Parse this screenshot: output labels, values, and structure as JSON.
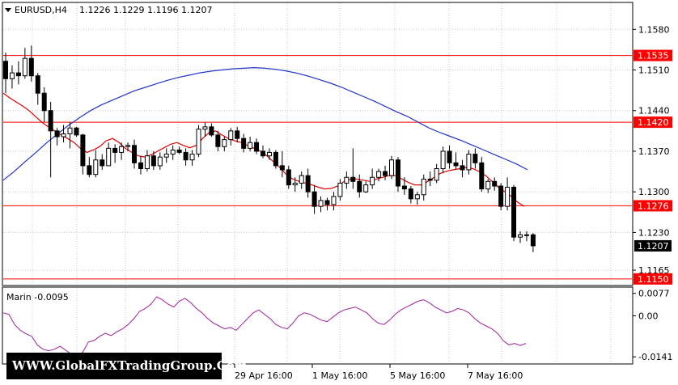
{
  "header": {
    "symbol_label": "EURUSD,H4",
    "ohlc": "1.1226 1.1229 1.1196 1.1207"
  },
  "watermark": "WWW.GlobalFXTradingGroup.Com",
  "colors": {
    "levels": "#ff0000",
    "ma_fast": "#e00000",
    "ma_slow": "#2035c8",
    "oscillator": "#a020a0",
    "grid": "#c8c8c8",
    "current_price_bg": "#000000"
  },
  "price_axis": {
    "ticks": [
      "1.1580",
      "1.1510",
      "1.1440",
      "1.1370",
      "1.1300",
      "1.1230",
      "1.1165"
    ]
  },
  "levels": [
    "1.1535",
    "1.1420",
    "1.1276",
    "1.1150"
  ],
  "current_price": "1.1207",
  "time_axis": {
    "labels": [
      "29 Apr 16:00",
      "1 May 16:00",
      "5 May 16:00",
      "7 May 16:00"
    ]
  },
  "indicator": {
    "label": "Marin -0.0095",
    "ticks": [
      "0.0077",
      "0.00",
      "-0.0141"
    ]
  },
  "chart_data": {
    "type": "candlestick",
    "timeframe": "H4",
    "y_range": [
      1.114,
      1.1625
    ],
    "horizontal_levels": [
      1.1535,
      1.142,
      1.1276,
      1.115
    ],
    "last_price": 1.1207,
    "candles": [
      [
        1.1525,
        1.154,
        1.147,
        1.1495
      ],
      [
        1.1495,
        1.1518,
        1.1478,
        1.1505
      ],
      [
        1.1505,
        1.1525,
        1.1485,
        1.15
      ],
      [
        1.15,
        1.1548,
        1.1495,
        1.153
      ],
      [
        1.153,
        1.1552,
        1.149,
        1.15
      ],
      [
        1.15,
        1.1505,
        1.145,
        1.147
      ],
      [
        1.147,
        1.148,
        1.142,
        1.144
      ],
      [
        1.144,
        1.1455,
        1.1325,
        1.1405
      ],
      [
        1.1405,
        1.141,
        1.138,
        1.1395
      ],
      [
        1.1395,
        1.1415,
        1.1385,
        1.14
      ],
      [
        1.14,
        1.142,
        1.1375,
        1.141
      ],
      [
        1.141,
        1.1412,
        1.1395,
        1.1398
      ],
      [
        1.1398,
        1.14,
        1.133,
        1.1345
      ],
      [
        1.1345,
        1.136,
        1.1325,
        1.133
      ],
      [
        1.133,
        1.1372,
        1.1325,
        1.1355
      ],
      [
        1.1355,
        1.1365,
        1.1338,
        1.1345
      ],
      [
        1.1345,
        1.1385,
        1.1345,
        1.1375
      ],
      [
        1.1375,
        1.1382,
        1.135,
        1.1368
      ],
      [
        1.1368,
        1.1385,
        1.1355,
        1.1378
      ],
      [
        1.1378,
        1.1385,
        1.137,
        1.138
      ],
      [
        1.138,
        1.139,
        1.134,
        1.135
      ],
      [
        1.135,
        1.1362,
        1.133,
        1.134
      ],
      [
        1.134,
        1.1372,
        1.1335,
        1.1362
      ],
      [
        1.1362,
        1.137,
        1.1338,
        1.1345
      ],
      [
        1.1345,
        1.1368,
        1.1338,
        1.136
      ],
      [
        1.136,
        1.1375,
        1.135,
        1.1365
      ],
      [
        1.1365,
        1.138,
        1.1355,
        1.1372
      ],
      [
        1.1372,
        1.1378,
        1.1365,
        1.1368
      ],
      [
        1.1368,
        1.1375,
        1.1345,
        1.1355
      ],
      [
        1.1355,
        1.1372,
        1.1345,
        1.1365
      ],
      [
        1.1365,
        1.1415,
        1.136,
        1.1408
      ],
      [
        1.1408,
        1.142,
        1.1395,
        1.1412
      ],
      [
        1.1412,
        1.1418,
        1.1395,
        1.1398
      ],
      [
        1.1398,
        1.1405,
        1.137,
        1.1378
      ],
      [
        1.1378,
        1.1395,
        1.137,
        1.139
      ],
      [
        1.139,
        1.141,
        1.138,
        1.1405
      ],
      [
        1.1405,
        1.1412,
        1.1385,
        1.1392
      ],
      [
        1.1392,
        1.14,
        1.1368,
        1.1375
      ],
      [
        1.1375,
        1.1395,
        1.137,
        1.1385
      ],
      [
        1.1385,
        1.1392,
        1.1365,
        1.137
      ],
      [
        1.137,
        1.138,
        1.1358,
        1.1362
      ],
      [
        1.1362,
        1.1375,
        1.1355,
        1.1368
      ],
      [
        1.1368,
        1.1372,
        1.134,
        1.1345
      ],
      [
        1.1345,
        1.137,
        1.1325,
        1.1338
      ],
      [
        1.1338,
        1.1345,
        1.1305,
        1.1312
      ],
      [
        1.1312,
        1.1325,
        1.13,
        1.1315
      ],
      [
        1.1315,
        1.1335,
        1.1305,
        1.1328
      ],
      [
        1.1328,
        1.134,
        1.129,
        1.13
      ],
      [
        1.13,
        1.1312,
        1.1262,
        1.1275
      ],
      [
        1.1275,
        1.1292,
        1.1265,
        1.1285
      ],
      [
        1.1285,
        1.129,
        1.1268,
        1.1278
      ],
      [
        1.1278,
        1.13,
        1.1268,
        1.1292
      ],
      [
        1.1292,
        1.1322,
        1.1285,
        1.1315
      ],
      [
        1.1315,
        1.1335,
        1.1305,
        1.1325
      ],
      [
        1.1325,
        1.1375,
        1.1305,
        1.1318
      ],
      [
        1.1318,
        1.133,
        1.129,
        1.13
      ],
      [
        1.13,
        1.1318,
        1.1298,
        1.1312
      ],
      [
        1.1312,
        1.134,
        1.1305,
        1.1325
      ],
      [
        1.1325,
        1.134,
        1.1318,
        1.1335
      ],
      [
        1.1335,
        1.1345,
        1.132,
        1.1328
      ],
      [
        1.1328,
        1.1362,
        1.1322,
        1.1355
      ],
      [
        1.1355,
        1.136,
        1.13,
        1.131
      ],
      [
        1.131,
        1.1325,
        1.1295,
        1.1305
      ],
      [
        1.1305,
        1.131,
        1.128,
        1.1288
      ],
      [
        1.1288,
        1.13,
        1.1278,
        1.1295
      ],
      [
        1.1295,
        1.133,
        1.1285,
        1.1322
      ],
      [
        1.1322,
        1.1335,
        1.131,
        1.132
      ],
      [
        1.132,
        1.1348,
        1.1315,
        1.134
      ],
      [
        1.134,
        1.1378,
        1.1332,
        1.137
      ],
      [
        1.137,
        1.138,
        1.134,
        1.135
      ],
      [
        1.135,
        1.1368,
        1.1338,
        1.1345
      ],
      [
        1.1345,
        1.1355,
        1.1325,
        1.1338
      ],
      [
        1.1338,
        1.1372,
        1.133,
        1.1365
      ],
      [
        1.1365,
        1.1375,
        1.134,
        1.135
      ],
      [
        1.135,
        1.136,
        1.13,
        1.1305
      ],
      [
        1.1305,
        1.1322,
        1.1298,
        1.1318
      ],
      [
        1.1318,
        1.1325,
        1.1302,
        1.131
      ],
      [
        1.131,
        1.1315,
        1.1268,
        1.1275
      ],
      [
        1.1275,
        1.1325,
        1.1268,
        1.1308
      ],
      [
        1.1308,
        1.1312,
        1.1215,
        1.1222
      ],
      [
        1.1222,
        1.1232,
        1.1212,
        1.1226
      ],
      [
        1.1226,
        1.1232,
        1.1215,
        1.1225
      ],
      [
        1.1226,
        1.1229,
        1.1196,
        1.1207
      ]
    ],
    "ma_fast": [
      1.147,
      1.1462,
      1.1455,
      1.1448,
      1.144,
      1.143,
      1.142,
      1.1412,
      1.1405,
      1.1398,
      1.1392,
      1.1385,
      1.1375,
      1.1368,
      1.1372,
      1.1378,
      1.1388,
      1.1392,
      1.1385,
      1.1375,
      1.1368,
      1.1362,
      1.136,
      1.1364,
      1.137,
      1.1376,
      1.1382,
      1.1385,
      1.138,
      1.1376,
      1.138,
      1.1392,
      1.1402,
      1.1405,
      1.1398,
      1.1392,
      1.1388,
      1.1385,
      1.138,
      1.1375,
      1.137,
      1.1362,
      1.1352,
      1.1342,
      1.133,
      1.1322,
      1.1318,
      1.1315,
      1.1312,
      1.1308,
      1.1305,
      1.1306,
      1.131,
      1.1318,
      1.1322,
      1.1322,
      1.132,
      1.1318,
      1.1322,
      1.1325,
      1.1328,
      1.1328,
      1.1322,
      1.1316,
      1.1312,
      1.1312,
      1.1318,
      1.1325,
      1.1332,
      1.1336,
      1.1338,
      1.134,
      1.1342,
      1.134,
      1.1335,
      1.1328,
      1.1318,
      1.1308,
      1.13,
      1.1292,
      1.1282,
      1.1275
    ],
    "ma_slow": [
      1.132,
      1.1335,
      1.1352,
      1.1368,
      1.1385,
      1.14,
      1.1415,
      1.1428,
      1.144,
      1.145,
      1.1458,
      1.1466,
      1.1474,
      1.148,
      1.1486,
      1.1492,
      1.1497,
      1.1501,
      1.1505,
      1.1508,
      1.151,
      1.1512,
      1.1513,
      1.1514,
      1.1513,
      1.1511,
      1.1508,
      1.1504,
      1.1499,
      1.1493,
      1.1487,
      1.148,
      1.1472,
      1.1464,
      1.1456,
      1.1447,
      1.1438,
      1.143,
      1.142,
      1.141,
      1.1402,
      1.1395,
      1.1388,
      1.138,
      1.1372,
      1.1364,
      1.1356,
      1.1348,
      1.1338
    ]
  },
  "oscillator_data": {
    "y_range": [
      -0.016,
      0.009
    ],
    "values": [
      0.001,
      0.0005,
      -0.003,
      -0.005,
      -0.0062,
      -0.007,
      -0.01,
      -0.0115,
      -0.012,
      -0.0115,
      -0.0105,
      -0.0118,
      -0.0132,
      -0.0142,
      -0.0125,
      -0.009,
      -0.0085,
      -0.007,
      -0.006,
      -0.0068,
      -0.0055,
      -0.0045,
      -0.003,
      -0.001,
      0.0015,
      0.0025,
      0.004,
      0.0065,
      0.0055,
      0.004,
      0.003,
      0.005,
      0.006,
      0.0045,
      0.0025,
      0.001,
      -0.001,
      -0.0025,
      -0.0035,
      -0.0045,
      -0.004,
      -0.005,
      -0.003,
      -0.001,
      0.001,
      0.002,
      0.0005,
      -0.001,
      -0.003,
      -0.004,
      -0.0045,
      -0.0025,
      0.0,
      0.001,
      0.0005,
      -0.0005,
      -0.0015,
      -0.002,
      -0.0005,
      0.001,
      0.002,
      0.0025,
      0.003,
      0.002,
      0.001,
      -0.001,
      -0.0025,
      -0.003,
      -0.0015,
      0.0005,
      0.002,
      0.003,
      0.004,
      0.005,
      0.0055,
      0.0045,
      0.003,
      0.002,
      0.001,
      0.0015,
      0.0025,
      0.002,
      0.001,
      -0.001,
      -0.0025,
      -0.0035,
      -0.0045,
      -0.006,
      -0.0085,
      -0.01,
      -0.0095,
      -0.0102,
      -0.0095
    ]
  }
}
